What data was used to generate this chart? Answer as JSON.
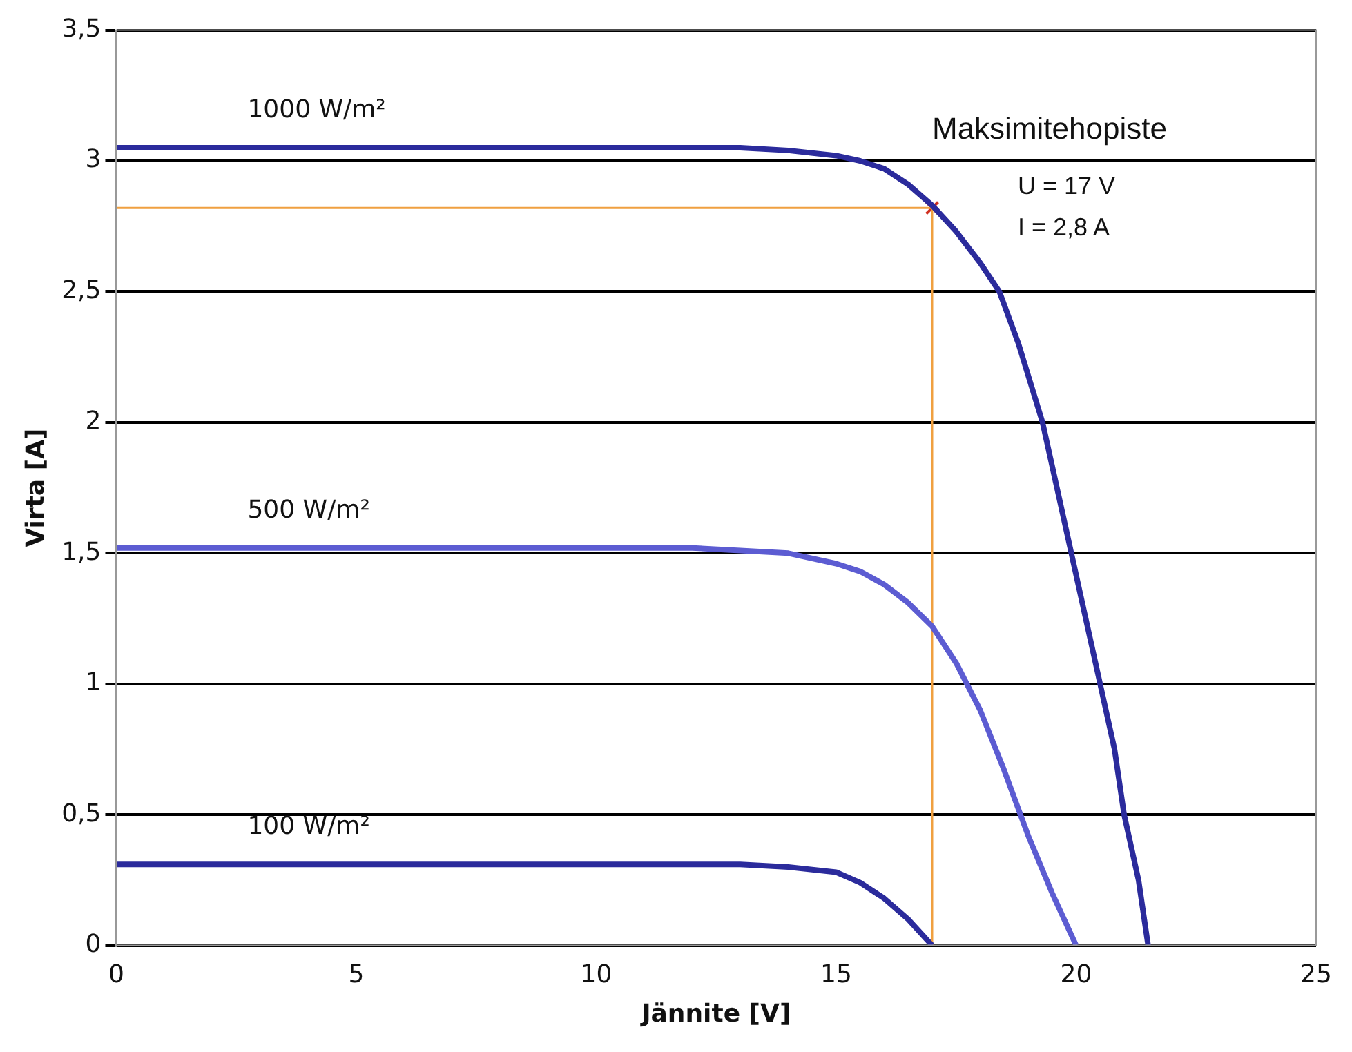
{
  "chart_data": {
    "type": "line",
    "xlabel": "Jännite [V]",
    "ylabel": "Virta [A]",
    "xlim": [
      0,
      25
    ],
    "xticks": [
      0,
      5,
      10,
      15,
      20,
      25
    ],
    "ylim": [
      0,
      3.5
    ],
    "yticks": [
      0,
      {
        "value": 0.5,
        "label": "0,5"
      },
      1,
      {
        "value": 1.5,
        "label": "1,5"
      },
      2,
      {
        "value": 2.5,
        "label": "2,5"
      },
      3,
      {
        "value": 3.5,
        "label": "3,5"
      }
    ],
    "grid": "y",
    "legend": false,
    "marker": "none",
    "series": [
      {
        "name": "1000 W/m²",
        "color": "#2b2b9c",
        "x": [
          0,
          5,
          10,
          13,
          14,
          15,
          15.5,
          16,
          16.5,
          17,
          17.5,
          18,
          18.4,
          18.8,
          19.3,
          19.6,
          19.9,
          20.2,
          20.5,
          20.8,
          21,
          21.3,
          21.5
        ],
        "values": [
          3.05,
          3.05,
          3.05,
          3.05,
          3.04,
          3.02,
          3.0,
          2.97,
          2.91,
          2.83,
          2.73,
          2.61,
          2.5,
          2.3,
          2.0,
          1.75,
          1.5,
          1.25,
          1.0,
          0.75,
          0.5,
          0.25,
          0
        ]
      },
      {
        "name": "500 W/m²",
        "color": "#5c5cd2",
        "x": [
          0,
          5,
          10,
          12,
          13,
          14,
          15,
          15.5,
          16,
          16.5,
          17,
          17.5,
          18,
          18.5,
          19,
          19.5,
          20
        ],
        "values": [
          1.52,
          1.52,
          1.52,
          1.52,
          1.51,
          1.5,
          1.46,
          1.43,
          1.38,
          1.31,
          1.22,
          1.08,
          0.9,
          0.67,
          0.42,
          0.2,
          0
        ]
      },
      {
        "name": "100 W/m²",
        "color": "#2b2b9c",
        "x": [
          0,
          5,
          10,
          13,
          14,
          15,
          15.5,
          16,
          16.5,
          17
        ],
        "values": [
          0.31,
          0.31,
          0.31,
          0.31,
          0.3,
          0.28,
          0.24,
          0.18,
          0.1,
          0
        ]
      },
      {
        "type": "line",
        "color": "#f0a040",
        "x": [
          0,
          17,
          17
        ],
        "values": [
          2.82,
          2.82,
          0
        ]
      },
      {
        "type": "scatter",
        "color": "#d03020",
        "marker": "cross",
        "x": [
          17
        ],
        "values": [
          2.82
        ]
      }
    ],
    "annotations": [
      "Maksimitehopiste",
      "U = 17 V",
      "I = 2,8 A"
    ]
  }
}
